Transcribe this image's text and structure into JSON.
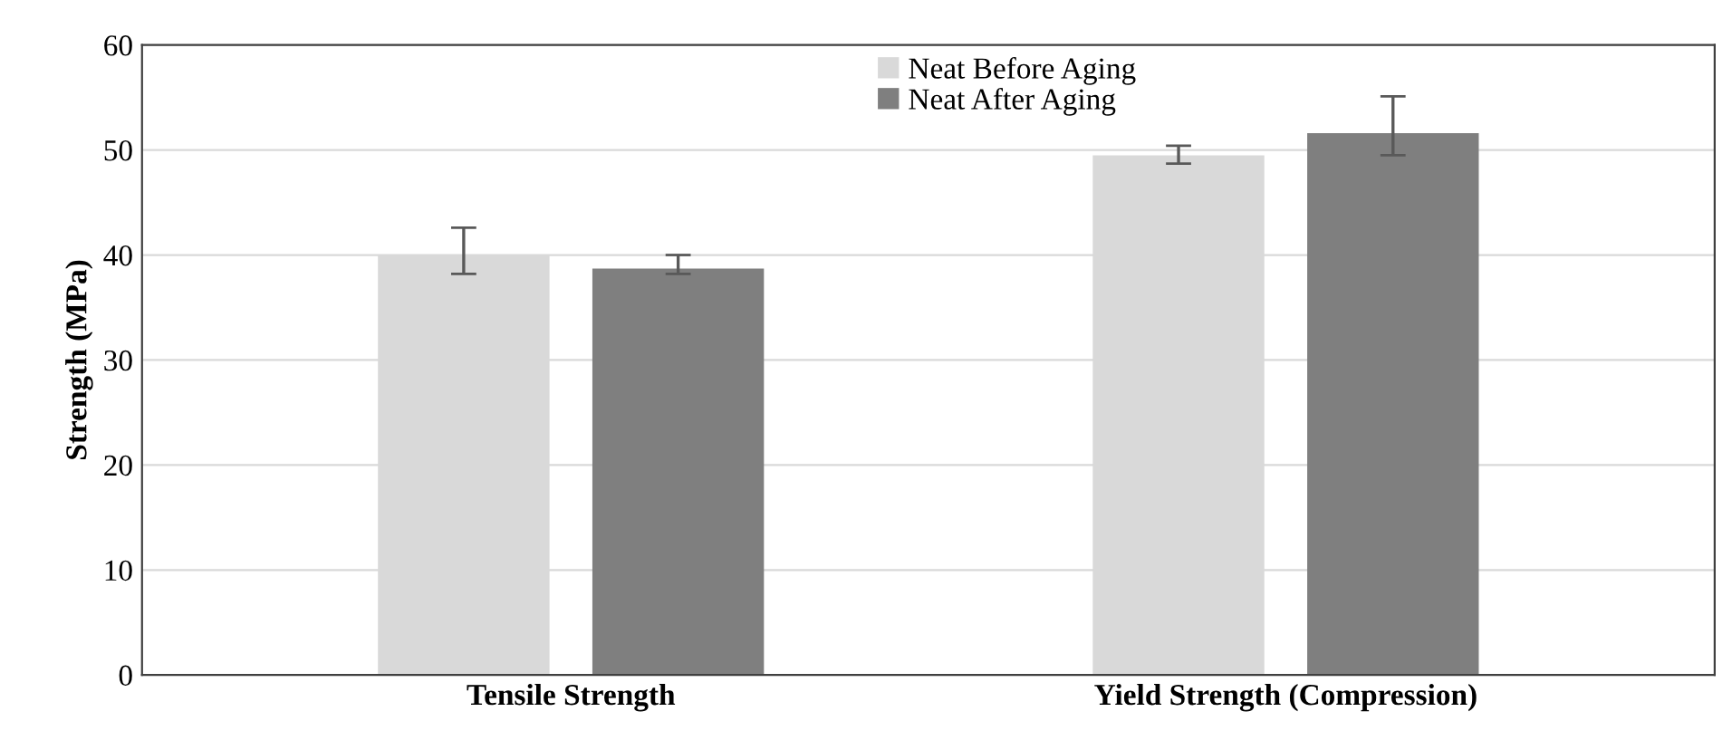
{
  "chart_data": {
    "type": "bar",
    "ylabel": "Strength (MPa)",
    "categories": [
      "Tensile Strength",
      "Yield Strength (Compression)"
    ],
    "series": [
      {
        "name": "Neat Before Aging",
        "color": "#d9d9d9",
        "values": [
          40.0,
          49.5
        ],
        "errors": [
          [
            38.2,
            42.6
          ],
          [
            48.7,
            50.4
          ]
        ]
      },
      {
        "name": "Neat After Aging",
        "color": "#7f7f7f",
        "values": [
          38.7,
          51.6
        ],
        "errors": [
          [
            38.2,
            40.0
          ],
          [
            49.5,
            55.1
          ]
        ]
      }
    ],
    "ylim": [
      0,
      60
    ],
    "yticks": [
      0,
      10,
      20,
      30,
      40,
      50,
      60
    ],
    "grid": "y",
    "legend": "top"
  }
}
